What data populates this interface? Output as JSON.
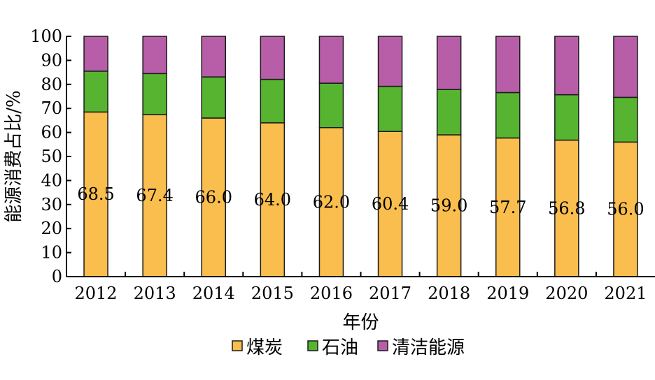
{
  "chart_data": {
    "type": "bar",
    "stacked": true,
    "categories": [
      "2012",
      "2013",
      "2014",
      "2015",
      "2016",
      "2017",
      "2018",
      "2019",
      "2020",
      "2021"
    ],
    "series": [
      {
        "name": "煤炭",
        "color": "#F9BE4D",
        "values": [
          68.5,
          67.4,
          66.0,
          64.0,
          62.0,
          60.4,
          59.0,
          57.7,
          56.8,
          56.0
        ],
        "labels": [
          "68.5",
          "67.4",
          "66.0",
          "64.0",
          "62.0",
          "60.4",
          "59.0",
          "57.7",
          "56.8",
          "56.0"
        ]
      },
      {
        "name": "石油",
        "color": "#56B431",
        "values": [
          17.0,
          17.1,
          17.1,
          18.1,
          18.5,
          18.8,
          18.9,
          18.9,
          18.9,
          18.6
        ]
      },
      {
        "name": "清洁能源",
        "color": "#B85EA8",
        "values": [
          14.5,
          15.5,
          16.9,
          17.9,
          19.5,
          20.8,
          22.1,
          23.4,
          24.3,
          25.4
        ]
      }
    ],
    "xlabel": "年份",
    "ylabel": "能源消费占比/%",
    "ylim": [
      0,
      100
    ],
    "yticks": [
      "0",
      "10",
      "20",
      "30",
      "40",
      "50",
      "60",
      "70",
      "80",
      "90",
      "100"
    ],
    "grid": false,
    "legend_position": "bottom"
  }
}
